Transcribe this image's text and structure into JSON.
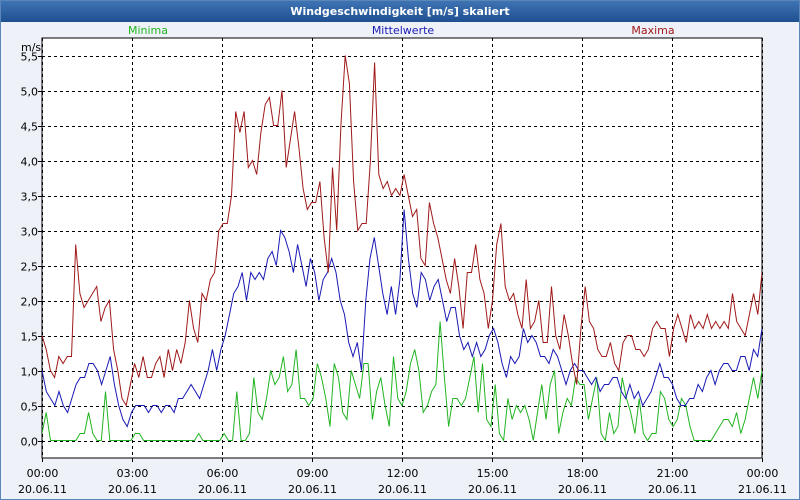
{
  "title": "Windgeschwindigkeit [m/s] skaliert",
  "colors": {
    "minima": "#22b422",
    "mittelwerte": "#1a1ab4",
    "maxima": "#a01a1a"
  },
  "chart_data": {
    "type": "line",
    "title": "Windgeschwindigkeit [m/s] skaliert",
    "ylabel": "m/s",
    "ylim": [
      -0.25,
      5.75
    ],
    "xlim": [
      0,
      24
    ],
    "grid": true,
    "legend": [
      "Minima",
      "Mittelwerte",
      "Maxima"
    ],
    "yticks": [
      0,
      0.5,
      1,
      1.5,
      2,
      2.5,
      3,
      3.5,
      4,
      4.5,
      5,
      5.5
    ],
    "ytick_labels": [
      "0,0",
      "0,5",
      "1,0",
      "1,5",
      "2,0",
      "2,5",
      "3,0",
      "3,5",
      "4,0",
      "4,5",
      "5,0",
      "5,5"
    ],
    "xticks": [
      0,
      3,
      6,
      9,
      12,
      15,
      18,
      21,
      24
    ],
    "xtick_labels": [
      {
        "time": "00:00",
        "date": "20.06.11"
      },
      {
        "time": "03:00",
        "date": "20.06.11"
      },
      {
        "time": "06:00",
        "date": "20.06.11"
      },
      {
        "time": "09:00",
        "date": "20.06.11"
      },
      {
        "time": "12:00",
        "date": "20.06.11"
      },
      {
        "time": "15:00",
        "date": "20.06.11"
      },
      {
        "time": "18:00",
        "date": "20.06.11"
      },
      {
        "time": "21:00",
        "date": "20.06.11"
      },
      {
        "time": "00:00",
        "date": "21.06.11"
      }
    ],
    "step_hours": 0.1667,
    "series": [
      {
        "name": "Minima",
        "values": [
          0.1,
          0.4,
          0,
          0,
          0,
          0,
          0,
          0,
          0,
          0.1,
          0.1,
          0.4,
          0.1,
          0,
          0,
          0.7,
          0,
          0,
          0,
          0,
          0,
          0,
          0.1,
          0.1,
          0,
          0,
          0,
          0,
          0,
          0,
          0,
          0,
          0,
          0,
          0,
          0,
          0,
          0.1,
          0,
          0,
          0,
          0,
          0,
          0.1,
          0,
          0,
          0.7,
          0,
          0,
          0.1,
          0.9,
          0.4,
          0.3,
          0.6,
          1.0,
          0.8,
          0.9,
          1.2,
          0.7,
          0.8,
          1.3,
          0.6,
          0.6,
          0.5,
          0.6,
          1.1,
          0.9,
          0.6,
          0.2,
          1.1,
          0.9,
          0.4,
          0.3,
          1.0,
          0.8,
          0.6,
          1.1,
          1.1,
          0.3,
          0.7,
          0.9,
          0.5,
          0.2,
          1.2,
          0.6,
          0.5,
          0.7,
          1.1,
          1.3,
          1.0,
          0.4,
          0.5,
          0.7,
          0.8,
          1.7,
          0.9,
          0.2,
          0.6,
          0.6,
          0.5,
          0.6,
          0.9,
          1.2,
          0.4,
          1.1,
          0.3,
          0.2,
          0.8,
          0.1,
          0,
          0.6,
          0.3,
          0.5,
          0.4,
          0.5,
          0.3,
          0,
          0.4,
          0.8,
          0.3,
          0.8,
          1.0,
          0.1,
          0.4,
          0.6,
          0.5,
          0.9,
          0.8,
          0.8,
          0.3,
          0.6,
          0.9,
          0.1,
          0,
          0.4,
          0.1,
          0.2,
          0.9,
          0.6,
          0.4,
          0.1,
          0.6,
          0.1,
          0,
          0.1,
          0.1,
          0.7,
          0.6,
          0.3,
          0.2,
          0.3,
          0.6,
          0.5,
          0.2,
          0,
          0,
          0,
          0,
          0,
          0.1,
          0.2,
          0.3,
          0.3,
          0.2,
          0.4,
          0.1,
          0.3,
          0.6,
          0.9,
          0.6,
          1.0
        ]
      },
      {
        "name": "Mittelwerte",
        "values": [
          1.0,
          0.7,
          0.6,
          0.5,
          0.7,
          0.5,
          0.4,
          0.6,
          0.8,
          0.9,
          0.9,
          1.1,
          1.1,
          1.0,
          0.8,
          1.0,
          1.2,
          0.8,
          0.5,
          0.3,
          0.2,
          0.4,
          0.5,
          0.5,
          0.5,
          0.4,
          0.5,
          0.5,
          0.4,
          0.5,
          0.5,
          0.4,
          0.6,
          0.6,
          0.7,
          0.8,
          0.7,
          0.6,
          0.8,
          1.0,
          1.3,
          1.0,
          1.3,
          1.5,
          1.8,
          2.1,
          2.2,
          2.4,
          2.0,
          2.4,
          2.3,
          2.4,
          2.3,
          2.6,
          2.7,
          2.5,
          3.0,
          2.9,
          2.7,
          2.4,
          2.8,
          2.5,
          2.2,
          2.6,
          2.4,
          2.0,
          2.3,
          2.4,
          2.6,
          2.4,
          2.0,
          1.8,
          1.4,
          1.2,
          1.4,
          1.0,
          2.0,
          2.6,
          2.9,
          2.5,
          2.1,
          1.8,
          2.2,
          1.8,
          2.3,
          3.3,
          2.6,
          2.1,
          1.9,
          2.4,
          2.3,
          2.0,
          2.2,
          2.3,
          2.0,
          1.7,
          1.9,
          1.9,
          1.5,
          1.3,
          1.4,
          1.2,
          1.4,
          1.2,
          1.3,
          1.5,
          1.6,
          1.4,
          1.1,
          0.9,
          1.2,
          1.1,
          1.2,
          1.6,
          1.4,
          1.5,
          1.4,
          1.2,
          1.2,
          1.1,
          1.3,
          1.2,
          1.0,
          0.8,
          1.0,
          1.1,
          1.0,
          1.0,
          0.9,
          0.8,
          0.9,
          0.7,
          0.8,
          0.8,
          0.9,
          0.9,
          0.7,
          0.6,
          0.8,
          0.6,
          0.7,
          0.5,
          0.6,
          0.7,
          0.9,
          1.1,
          0.9,
          0.9,
          0.8,
          0.6,
          0.5,
          0.5,
          0.6,
          0.6,
          0.8,
          0.7,
          0.9,
          1.0,
          0.8,
          1.0,
          1.1,
          1.1,
          1.0,
          1.0,
          1.2,
          1.2,
          1.0,
          1.3,
          1.2,
          1.6
        ]
      },
      {
        "name": "Maxima",
        "values": [
          1.5,
          1.3,
          1.0,
          0.9,
          1.2,
          1.1,
          1.2,
          1.2,
          2.8,
          2.1,
          1.9,
          2.0,
          2.1,
          2.2,
          1.7,
          1.9,
          2.0,
          1.3,
          1.0,
          0.6,
          0.5,
          0.8,
          1.1,
          0.9,
          1.2,
          0.9,
          0.9,
          1.1,
          1.2,
          0.9,
          1.3,
          1.0,
          1.3,
          1.1,
          1.4,
          2.0,
          1.6,
          1.4,
          2.1,
          2.0,
          2.3,
          2.4,
          3.0,
          3.1,
          3.1,
          3.5,
          4.7,
          4.4,
          4.7,
          3.9,
          4.0,
          3.8,
          4.4,
          4.8,
          4.9,
          4.5,
          4.5,
          5.0,
          3.9,
          4.3,
          4.7,
          4.2,
          3.6,
          3.3,
          3.4,
          3.4,
          3.7,
          2.9,
          2.4,
          3.9,
          3.0,
          4.5,
          5.5,
          5.1,
          3.7,
          3.0,
          3.1,
          3.1,
          4.0,
          5.4,
          3.8,
          3.6,
          3.7,
          3.5,
          3.6,
          3.5,
          3.8,
          3.5,
          3.2,
          3.3,
          2.6,
          2.5,
          3.4,
          3.1,
          2.9,
          2.6,
          2.3,
          2.1,
          2.6,
          2.2,
          1.6,
          2.4,
          2.4,
          2.8,
          2.3,
          2.1,
          1.6,
          2.0,
          2.8,
          3.1,
          2.2,
          2.0,
          2.1,
          1.8,
          1.6,
          2.3,
          1.6,
          1.7,
          2.0,
          1.4,
          1.4,
          2.2,
          1.5,
          1.3,
          1.8,
          1.5,
          1.1,
          0.8,
          1.6,
          2.2,
          1.7,
          1.6,
          1.3,
          1.2,
          1.2,
          1.4,
          1.1,
          1.0,
          1.4,
          1.5,
          1.5,
          1.3,
          1.3,
          1.2,
          1.3,
          1.6,
          1.7,
          1.6,
          1.6,
          1.2,
          1.6,
          1.8,
          1.6,
          1.4,
          1.8,
          1.6,
          1.7,
          1.6,
          1.8,
          1.6,
          1.7,
          1.6,
          1.7,
          1.6,
          2.1,
          1.7,
          1.6,
          1.5,
          1.8,
          2.1,
          1.8,
          2.4
        ]
      }
    ]
  }
}
